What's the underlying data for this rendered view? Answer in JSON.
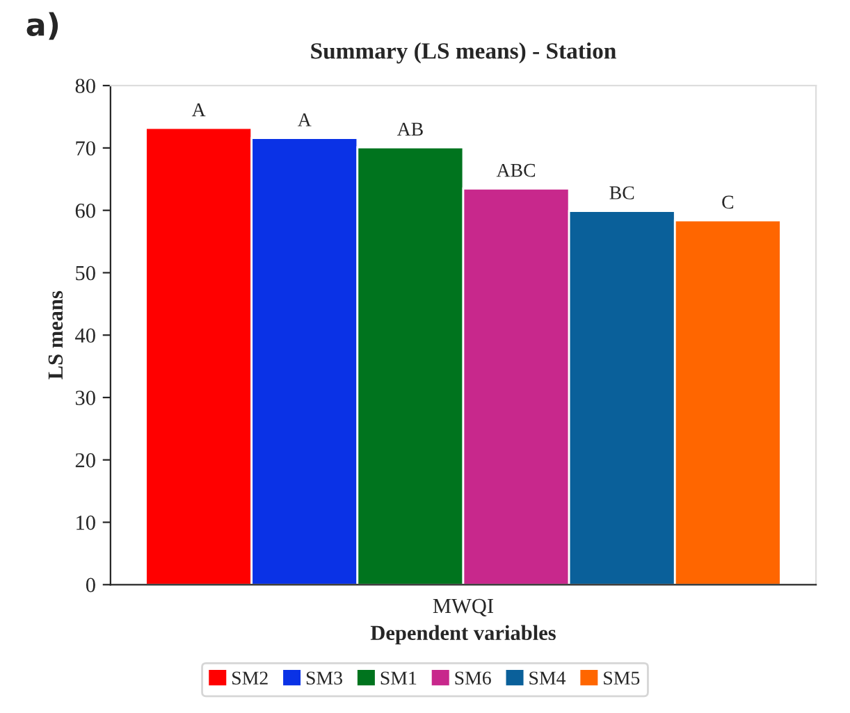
{
  "chart_data": {
    "type": "bar",
    "title": "Summary (LS means) - Station",
    "xlabel": "Dependent variables",
    "ylabel": "LS means",
    "annotations": [
      "a)"
    ],
    "categories": [
      "MWQI"
    ],
    "series": [
      {
        "name": "SM2",
        "color": "#ff0000",
        "values": [
          73.2
        ],
        "value_labels": [
          "A"
        ]
      },
      {
        "name": "SM3",
        "color": "#0a32e6",
        "values": [
          71.6
        ],
        "value_labels": [
          "A"
        ]
      },
      {
        "name": "SM1",
        "color": "#00741e",
        "values": [
          70.1
        ],
        "value_labels": [
          "AB"
        ]
      },
      {
        "name": "SM6",
        "color": "#c8288c",
        "values": [
          63.5
        ],
        "value_labels": [
          "ABC"
        ]
      },
      {
        "name": "SM4",
        "color": "#0a609a",
        "values": [
          59.9
        ],
        "value_labels": [
          "BC"
        ]
      },
      {
        "name": "SM5",
        "color": "#ff6600",
        "values": [
          58.4
        ],
        "value_labels": [
          "C"
        ]
      }
    ],
    "ylim": [
      0,
      80
    ],
    "yticks": [
      0,
      10,
      20,
      30,
      40,
      50,
      60,
      70,
      80
    ],
    "grid": false,
    "legend": "bottom"
  }
}
